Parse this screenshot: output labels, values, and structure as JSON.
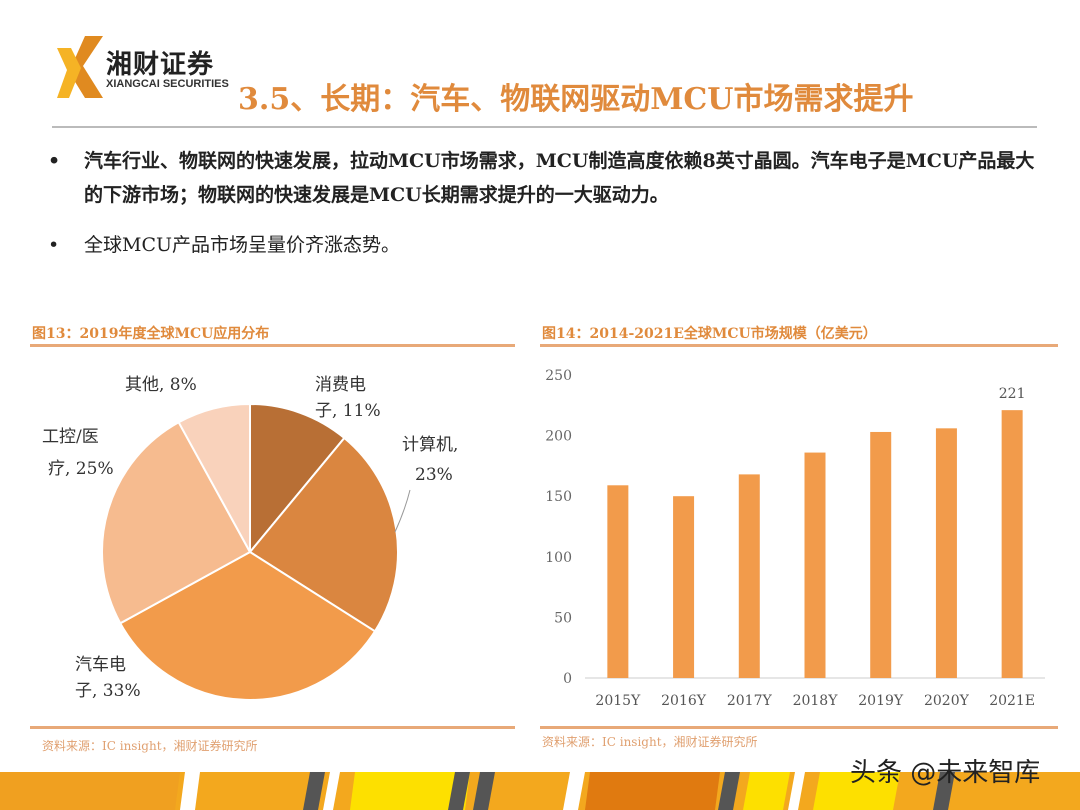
{
  "logo": {
    "cn": "湘财证券",
    "en": "XIANGCAI SECURITIES"
  },
  "title": "3.5、长期：汽车、物联网驱动MCU市场需求提升",
  "bullets": [
    "汽车行业、物联网的快速发展，拉动MCU市场需求，MCU制造高度依赖8英寸晶圆。汽车电子是MCU产品最大的下游市场；物联网的快速发展是MCU长期需求提升的一大驱动力。",
    "全球MCU产品市场呈量价齐涨态势。"
  ],
  "bullet_symbol": "•",
  "fig13": {
    "title": "图13：2019年度全球MCU应用分布",
    "source": "资料来源：IC insight，湘财证券研究所"
  },
  "fig14": {
    "title": "图14：2014-2021E全球MCU市场规模（亿美元）",
    "source": "资料来源：IC insight，湘财证券研究所"
  },
  "watermark": "头条 @未来智库",
  "chart_data": [
    {
      "type": "pie",
      "title": "图13：2019年度全球MCU应用分布",
      "slices": [
        {
          "label": "消费电子",
          "value": 11,
          "text": "消费电",
          "text2": "子, 11%",
          "color": "#b86f35"
        },
        {
          "label": "计算机",
          "value": 23,
          "text": "计算机,",
          "text2": "23%",
          "color": "#da8640"
        },
        {
          "label": "汽车电子",
          "value": 33,
          "text": "汽车电",
          "text2": "子, 33%",
          "color": "#f29b4b"
        },
        {
          "label": "工控/医疗",
          "value": 25,
          "text": "工控/医",
          "text2": "疗, 25%",
          "color": "#f6bb8f"
        },
        {
          "label": "其他",
          "value": 8,
          "text": "其他, 8%",
          "text2": "",
          "color": "#f9d2bb"
        }
      ]
    },
    {
      "type": "bar",
      "title": "图14：2014-2021E全球MCU市场规模（亿美元）",
      "categories": [
        "2015Y",
        "2016Y",
        "2017Y",
        "2018Y",
        "2019Y",
        "2020Y",
        "2021E"
      ],
      "values": [
        159,
        150,
        168,
        186,
        203,
        206,
        221
      ],
      "data_labels": {
        "2021E": "221"
      },
      "ylim": [
        0,
        250
      ],
      "yticks": [
        "0",
        "50",
        "100",
        "150",
        "200",
        "250"
      ],
      "color": "#f29b4b"
    }
  ]
}
